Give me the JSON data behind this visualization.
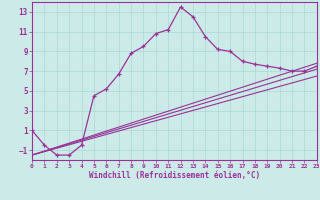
{
  "xlabel": "Windchill (Refroidissement éolien,°C)",
  "bg_color": "#cceae7",
  "line_color": "#993399",
  "grid_color": "#aad8d8",
  "xlim": [
    0,
    23
  ],
  "ylim": [
    -2,
    14
  ],
  "xticks": [
    0,
    1,
    2,
    3,
    4,
    5,
    6,
    7,
    8,
    9,
    10,
    11,
    12,
    13,
    14,
    15,
    16,
    17,
    18,
    19,
    20,
    21,
    22,
    23
  ],
  "yticks": [
    -1,
    1,
    3,
    5,
    7,
    9,
    11,
    13
  ],
  "series": [
    [
      0,
      1.0
    ],
    [
      1,
      -0.5
    ],
    [
      2,
      -1.5
    ],
    [
      3,
      -1.5
    ],
    [
      4,
      -0.5
    ],
    [
      5,
      4.5
    ],
    [
      6,
      5.2
    ],
    [
      7,
      6.7
    ],
    [
      8,
      8.8
    ],
    [
      9,
      9.5
    ],
    [
      10,
      10.8
    ],
    [
      11,
      11.2
    ],
    [
      12,
      13.5
    ],
    [
      13,
      12.5
    ],
    [
      14,
      10.5
    ],
    [
      15,
      9.2
    ],
    [
      16,
      9.0
    ],
    [
      17,
      8.0
    ],
    [
      18,
      7.7
    ],
    [
      19,
      7.5
    ],
    [
      20,
      7.3
    ],
    [
      21,
      7.0
    ],
    [
      22,
      7.0
    ],
    [
      23,
      7.5
    ]
  ],
  "linear1": [
    [
      0,
      -1.5
    ],
    [
      23,
      6.5
    ]
  ],
  "linear2": [
    [
      0,
      -1.5
    ],
    [
      23,
      7.2
    ]
  ],
  "linear3": [
    [
      0,
      -1.5
    ],
    [
      23,
      7.8
    ]
  ]
}
